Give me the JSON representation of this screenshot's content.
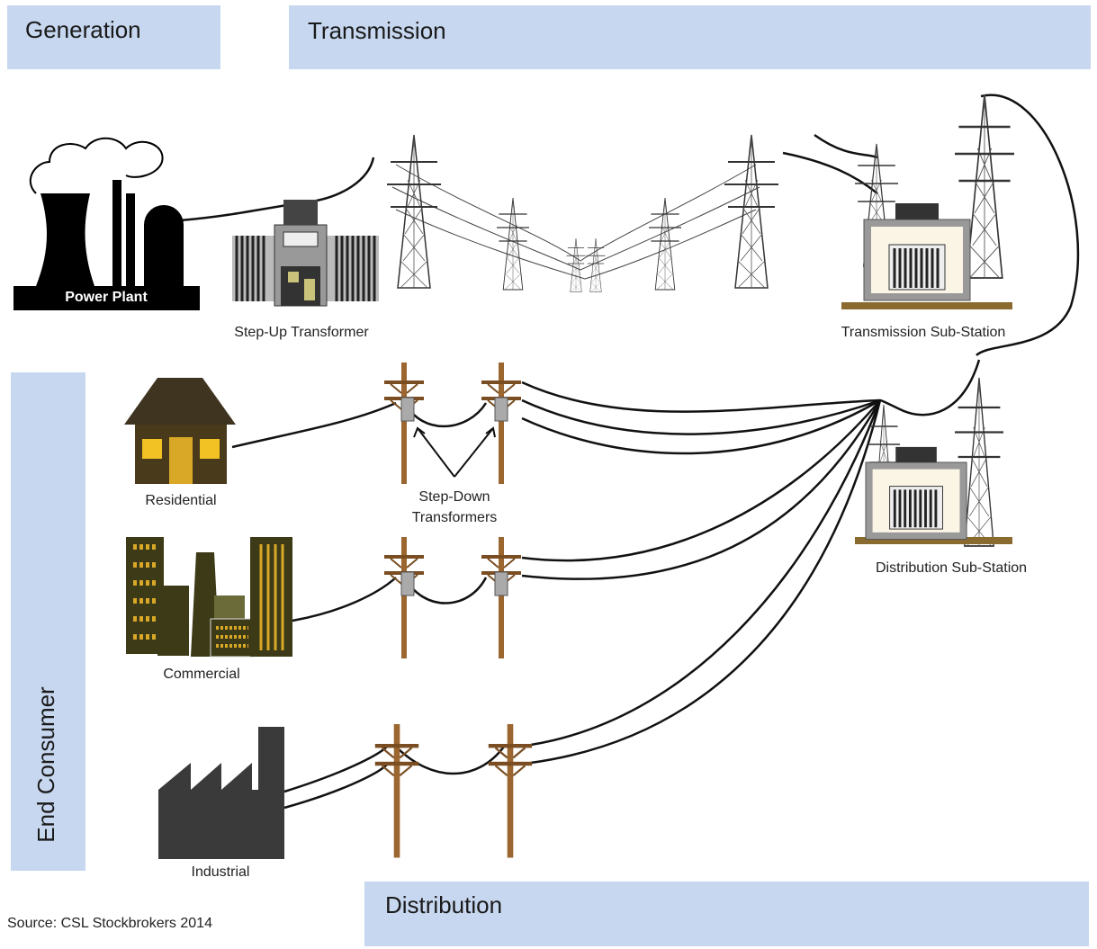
{
  "sections": {
    "generation": "Generation",
    "transmission": "Transmission",
    "end_consumer": "End Consumer",
    "distribution": "Distribution"
  },
  "nodes": [
    {
      "label": "Power Plant"
    },
    {
      "label": "Step-Up Transformer"
    },
    {
      "label": "Transmission Sub-Station"
    },
    {
      "label": "Residential"
    },
    {
      "label_lines": [
        "Step-Down",
        "Transformers"
      ]
    },
    {
      "label": "Distribution Sub-Station"
    },
    {
      "label": "Commercial"
    },
    {
      "label": "Industrial"
    }
  ],
  "source": "Source: CSL Stockbrokers 2014"
}
